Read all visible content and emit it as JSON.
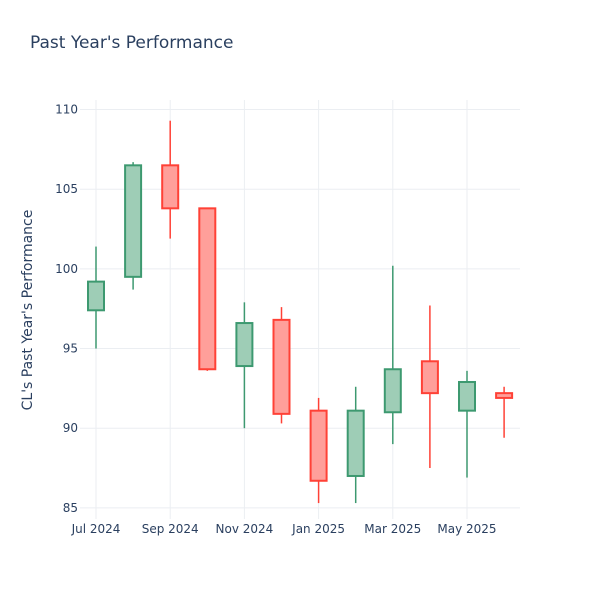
{
  "chart_data": {
    "type": "candlestick",
    "title": "Past Year's Performance",
    "ylabel": "CL's Past Year's Performance",
    "xlabel": "",
    "ylim": [
      84.3,
      110.6
    ],
    "yticks": [
      85,
      90,
      95,
      100,
      105,
      110
    ],
    "xticks": [
      "Jul 2024",
      "Sep 2024",
      "Nov 2024",
      "Jan 2025",
      "Mar 2025",
      "May 2025"
    ],
    "grid": true,
    "increasing_color": "#3d9970",
    "increasing_fill": "#9ecdb6",
    "decreasing_color": "#ff4136",
    "decreasing_fill": "#ff9f9a",
    "candles": [
      {
        "date": "2024-07-01",
        "open": 97.4,
        "high": 101.4,
        "low": 95.0,
        "close": 99.2
      },
      {
        "date": "2024-08-01",
        "open": 99.5,
        "high": 106.7,
        "low": 98.7,
        "close": 106.5
      },
      {
        "date": "2024-09-01",
        "open": 106.5,
        "high": 109.3,
        "low": 101.9,
        "close": 103.8
      },
      {
        "date": "2024-10-01",
        "open": 103.8,
        "high": 103.8,
        "low": 93.6,
        "close": 93.7
      },
      {
        "date": "2024-11-01",
        "open": 93.9,
        "high": 97.9,
        "low": 90.0,
        "close": 96.6
      },
      {
        "date": "2024-12-01",
        "open": 96.8,
        "high": 97.6,
        "low": 90.3,
        "close": 90.9
      },
      {
        "date": "2025-01-01",
        "open": 91.1,
        "high": 91.9,
        "low": 85.3,
        "close": 86.7
      },
      {
        "date": "2025-02-01",
        "open": 87.0,
        "high": 92.6,
        "low": 85.3,
        "close": 91.1
      },
      {
        "date": "2025-03-01",
        "open": 91.0,
        "high": 100.2,
        "low": 89.0,
        "close": 93.7
      },
      {
        "date": "2025-04-01",
        "open": 94.2,
        "high": 97.7,
        "low": 87.5,
        "close": 92.2
      },
      {
        "date": "2025-05-01",
        "open": 91.1,
        "high": 93.6,
        "low": 86.9,
        "close": 92.9
      },
      {
        "date": "2025-06-01",
        "open": 92.2,
        "high": 92.6,
        "low": 89.4,
        "close": 91.9
      }
    ]
  }
}
